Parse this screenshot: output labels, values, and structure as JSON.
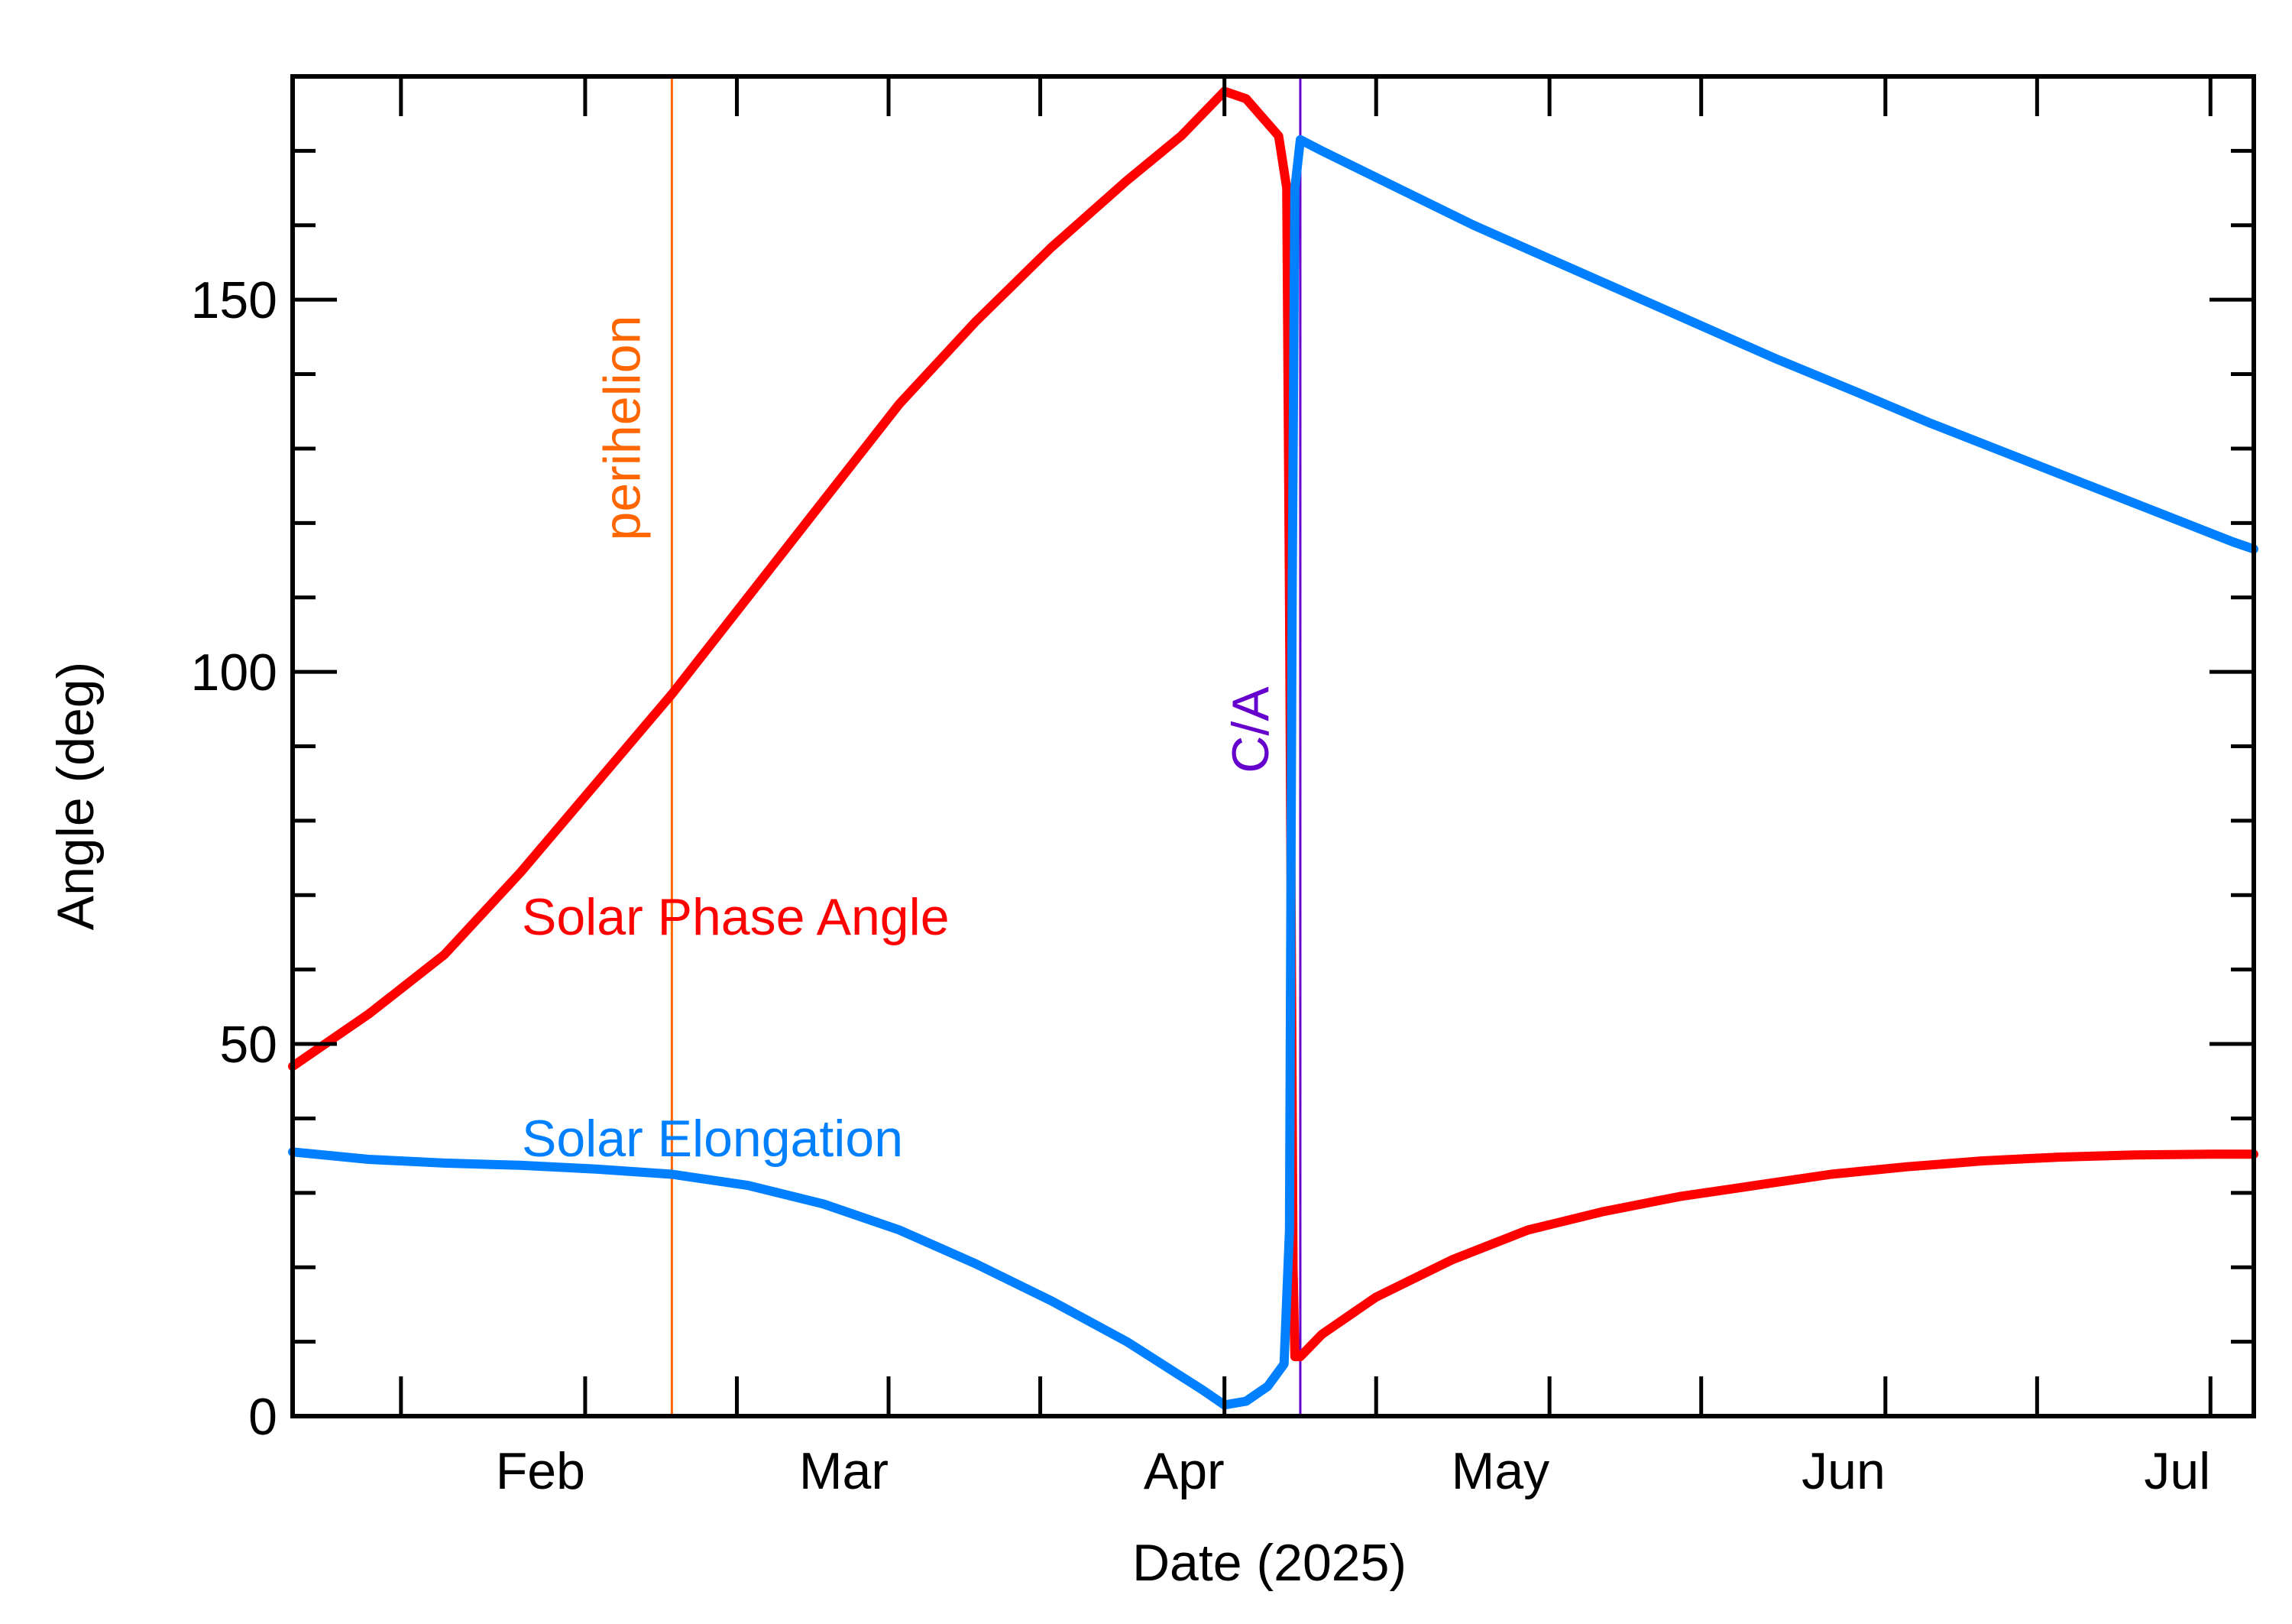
{
  "chart_data": {
    "type": "line",
    "xlabel": "Date (2025)",
    "ylabel": "Angle (deg)",
    "xlim": [
      "2025-01-05",
      "2025-07-05"
    ],
    "ylim": [
      0,
      180
    ],
    "x_tick_labels": [
      {
        "date": "2025-02-01",
        "label": "Feb"
      },
      {
        "date": "2025-03-01",
        "label": "Mar"
      },
      {
        "date": "2025-04-01",
        "label": "Apr"
      },
      {
        "date": "2025-05-01",
        "label": "May"
      },
      {
        "date": "2025-06-01",
        "label": "Jun"
      },
      {
        "date": "2025-07-01",
        "label": "Jul"
      }
    ],
    "y_ticks": [
      0,
      50,
      100,
      150
    ],
    "y_minor_step": 10,
    "grid": false,
    "vertical_markers": [
      {
        "date": "2025-02-09",
        "label": "perihelion",
        "color": "#ff6600"
      },
      {
        "date": "2025-04-08",
        "label": "C/A",
        "color": "#6600cc"
      }
    ],
    "series": [
      {
        "name": "Solar Phase Angle",
        "color": "#ff0000",
        "label_anchor": {
          "date": "2025-01-25",
          "value": 63
        },
        "points": [
          [
            "2025-01-05",
            47
          ],
          [
            "2025-01-12",
            54
          ],
          [
            "2025-01-19",
            62
          ],
          [
            "2025-01-26",
            73
          ],
          [
            "2025-02-02",
            85
          ],
          [
            "2025-02-09",
            97
          ],
          [
            "2025-02-16",
            110
          ],
          [
            "2025-02-23",
            123
          ],
          [
            "2025-03-02",
            136
          ],
          [
            "2025-03-09",
            147
          ],
          [
            "2025-03-16",
            157
          ],
          [
            "2025-03-23",
            166
          ],
          [
            "2025-03-28",
            172
          ],
          [
            "2025-04-01",
            178
          ],
          [
            "2025-04-03",
            177
          ],
          [
            "2025-04-06",
            172
          ],
          [
            "2025-04-06T18:00",
            165
          ],
          [
            "2025-04-07T00:00",
            110
          ],
          [
            "2025-04-07T08:00",
            20
          ],
          [
            "2025-04-07T12:00",
            8
          ],
          [
            "2025-04-08T00:00",
            8
          ],
          [
            "2025-04-10",
            11
          ],
          [
            "2025-04-15",
            16
          ],
          [
            "2025-04-22",
            21
          ],
          [
            "2025-04-29",
            25
          ],
          [
            "2025-05-06",
            27.5
          ],
          [
            "2025-05-13",
            29.5
          ],
          [
            "2025-05-20",
            31
          ],
          [
            "2025-05-27",
            32.5
          ],
          [
            "2025-06-03",
            33.5
          ],
          [
            "2025-06-10",
            34.3
          ],
          [
            "2025-06-17",
            34.8
          ],
          [
            "2025-06-24",
            35.1
          ],
          [
            "2025-07-01",
            35.2
          ],
          [
            "2025-07-05",
            35.2
          ]
        ]
      },
      {
        "name": "Solar Elongation",
        "color": "#0080ff",
        "label_anchor": {
          "date": "2025-01-25",
          "value": 33
        },
        "points": [
          [
            "2025-01-05",
            35.5
          ],
          [
            "2025-01-12",
            34.5
          ],
          [
            "2025-01-19",
            34
          ],
          [
            "2025-01-26",
            33.7
          ],
          [
            "2025-02-02",
            33.2
          ],
          [
            "2025-02-09",
            32.5
          ],
          [
            "2025-02-16",
            31
          ],
          [
            "2025-02-23",
            28.5
          ],
          [
            "2025-03-02",
            25
          ],
          [
            "2025-03-09",
            20.5
          ],
          [
            "2025-03-16",
            15.5
          ],
          [
            "2025-03-23",
            10
          ],
          [
            "2025-03-30",
            3.5
          ],
          [
            "2025-04-01",
            1.5
          ],
          [
            "2025-04-03",
            2
          ],
          [
            "2025-04-05",
            4
          ],
          [
            "2025-04-06T12:00",
            7
          ],
          [
            "2025-04-07T00:00",
            25
          ],
          [
            "2025-04-07T06:00",
            110
          ],
          [
            "2025-04-07T12:00",
            165
          ],
          [
            "2025-04-08T00:00",
            171.5
          ],
          [
            "2025-04-10",
            170
          ],
          [
            "2025-04-17",
            165
          ],
          [
            "2025-04-24",
            160
          ],
          [
            "2025-05-01",
            155.5
          ],
          [
            "2025-05-08",
            151
          ],
          [
            "2025-05-15",
            146.5
          ],
          [
            "2025-05-22",
            142
          ],
          [
            "2025-05-29",
            137.8
          ],
          [
            "2025-06-05",
            133.5
          ],
          [
            "2025-06-12",
            129.5
          ],
          [
            "2025-06-19",
            125.5
          ],
          [
            "2025-06-26",
            121.5
          ],
          [
            "2025-07-03",
            117.5
          ],
          [
            "2025-07-05",
            116.5
          ]
        ]
      }
    ]
  }
}
